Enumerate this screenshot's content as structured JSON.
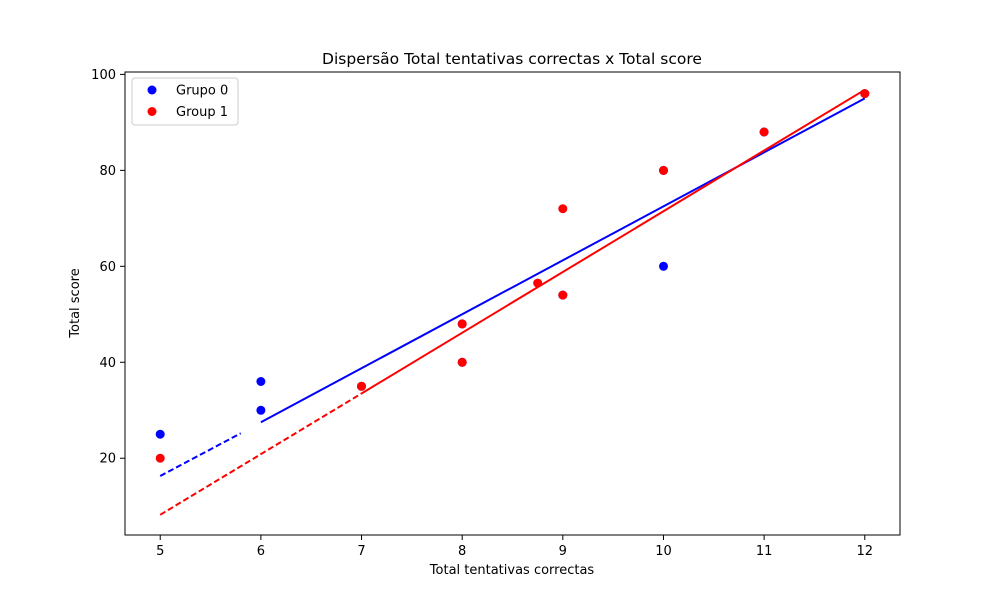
{
  "chart_data": {
    "type": "scatter",
    "title": "Dispersão Total tentativas correctas x Total score",
    "xlabel": "Total tentativas correctas",
    "ylabel": "Total score",
    "xlim": [
      4.65,
      12.35
    ],
    "ylim": [
      4,
      100.5
    ],
    "xticks": [
      5,
      6,
      7,
      8,
      9,
      10,
      11,
      12
    ],
    "yticks": [
      20,
      40,
      60,
      80,
      100
    ],
    "grid": false,
    "legend_position": "top-left",
    "series": [
      {
        "name": "Grupo 0",
        "color": "#0000ff",
        "x": [
          5,
          6,
          6,
          7,
          8,
          8,
          9,
          10,
          10,
          11,
          12
        ],
        "y": [
          25,
          36,
          30,
          35,
          48,
          40,
          54,
          80,
          60,
          88,
          96
        ],
        "fit": {
          "x": [
            5,
            5.8,
            6,
            12
          ],
          "y": [
            16.3,
            25.2,
            27.5,
            95.0
          ],
          "style": "dashed-then-solid"
        }
      },
      {
        "name": "Group 1",
        "color": "#ff0000",
        "x": [
          5,
          7,
          8,
          8,
          8.75,
          9,
          9,
          10,
          11,
          12
        ],
        "y": [
          20,
          35,
          48,
          40,
          56.5,
          72,
          54,
          80,
          88,
          96
        ],
        "fit": {
          "x": [
            5,
            7,
            7,
            12
          ],
          "y": [
            8.2,
            33.5,
            33.5,
            96.8
          ],
          "style": "dashed-then-solid"
        }
      }
    ]
  }
}
